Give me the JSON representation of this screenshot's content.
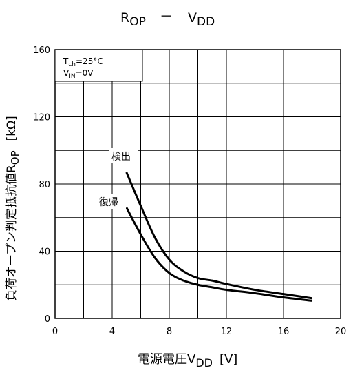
{
  "chart_data": {
    "type": "line",
    "title": {
      "main": "R",
      "main_sub": "OP",
      "dash": "－",
      "second": "V",
      "second_sub": "DD"
    },
    "xlabel": {
      "text": "電源電圧V",
      "sub": "DD",
      "unit": "[V]"
    },
    "ylabel": {
      "text": "負荷オープン判定抵抗値R",
      "sub": "OP",
      "unit": "[kΩ]"
    },
    "xlim": [
      0,
      20
    ],
    "ylim": [
      0,
      160
    ],
    "x_ticks": [
      "0",
      "4",
      "8",
      "12",
      "16",
      "20"
    ],
    "y_ticks": [
      "0",
      "40",
      "80",
      "120",
      "160"
    ],
    "grid": true,
    "legend_box": {
      "line1": {
        "main": "T",
        "sub": "ch",
        "rest": "=25°C"
      },
      "line2": {
        "main": "V",
        "sub": "IN",
        "rest": "=0V"
      }
    },
    "series": [
      {
        "name": "検出",
        "points": [
          [
            5,
            87
          ],
          [
            6,
            67
          ],
          [
            7,
            48
          ],
          [
            8,
            35
          ],
          [
            9,
            28
          ],
          [
            10,
            24
          ],
          [
            11,
            22.5
          ],
          [
            12,
            20.5
          ],
          [
            14,
            17
          ],
          [
            16,
            14.5
          ],
          [
            18,
            12
          ]
        ]
      },
      {
        "name": "復帰",
        "points": [
          [
            5,
            66
          ],
          [
            6,
            50
          ],
          [
            7,
            36
          ],
          [
            8,
            27
          ],
          [
            9,
            22.5
          ],
          [
            10,
            20
          ],
          [
            11,
            18.5
          ],
          [
            12,
            17
          ],
          [
            14,
            15
          ],
          [
            16,
            12.5
          ],
          [
            18,
            10.5
          ]
        ]
      }
    ]
  }
}
